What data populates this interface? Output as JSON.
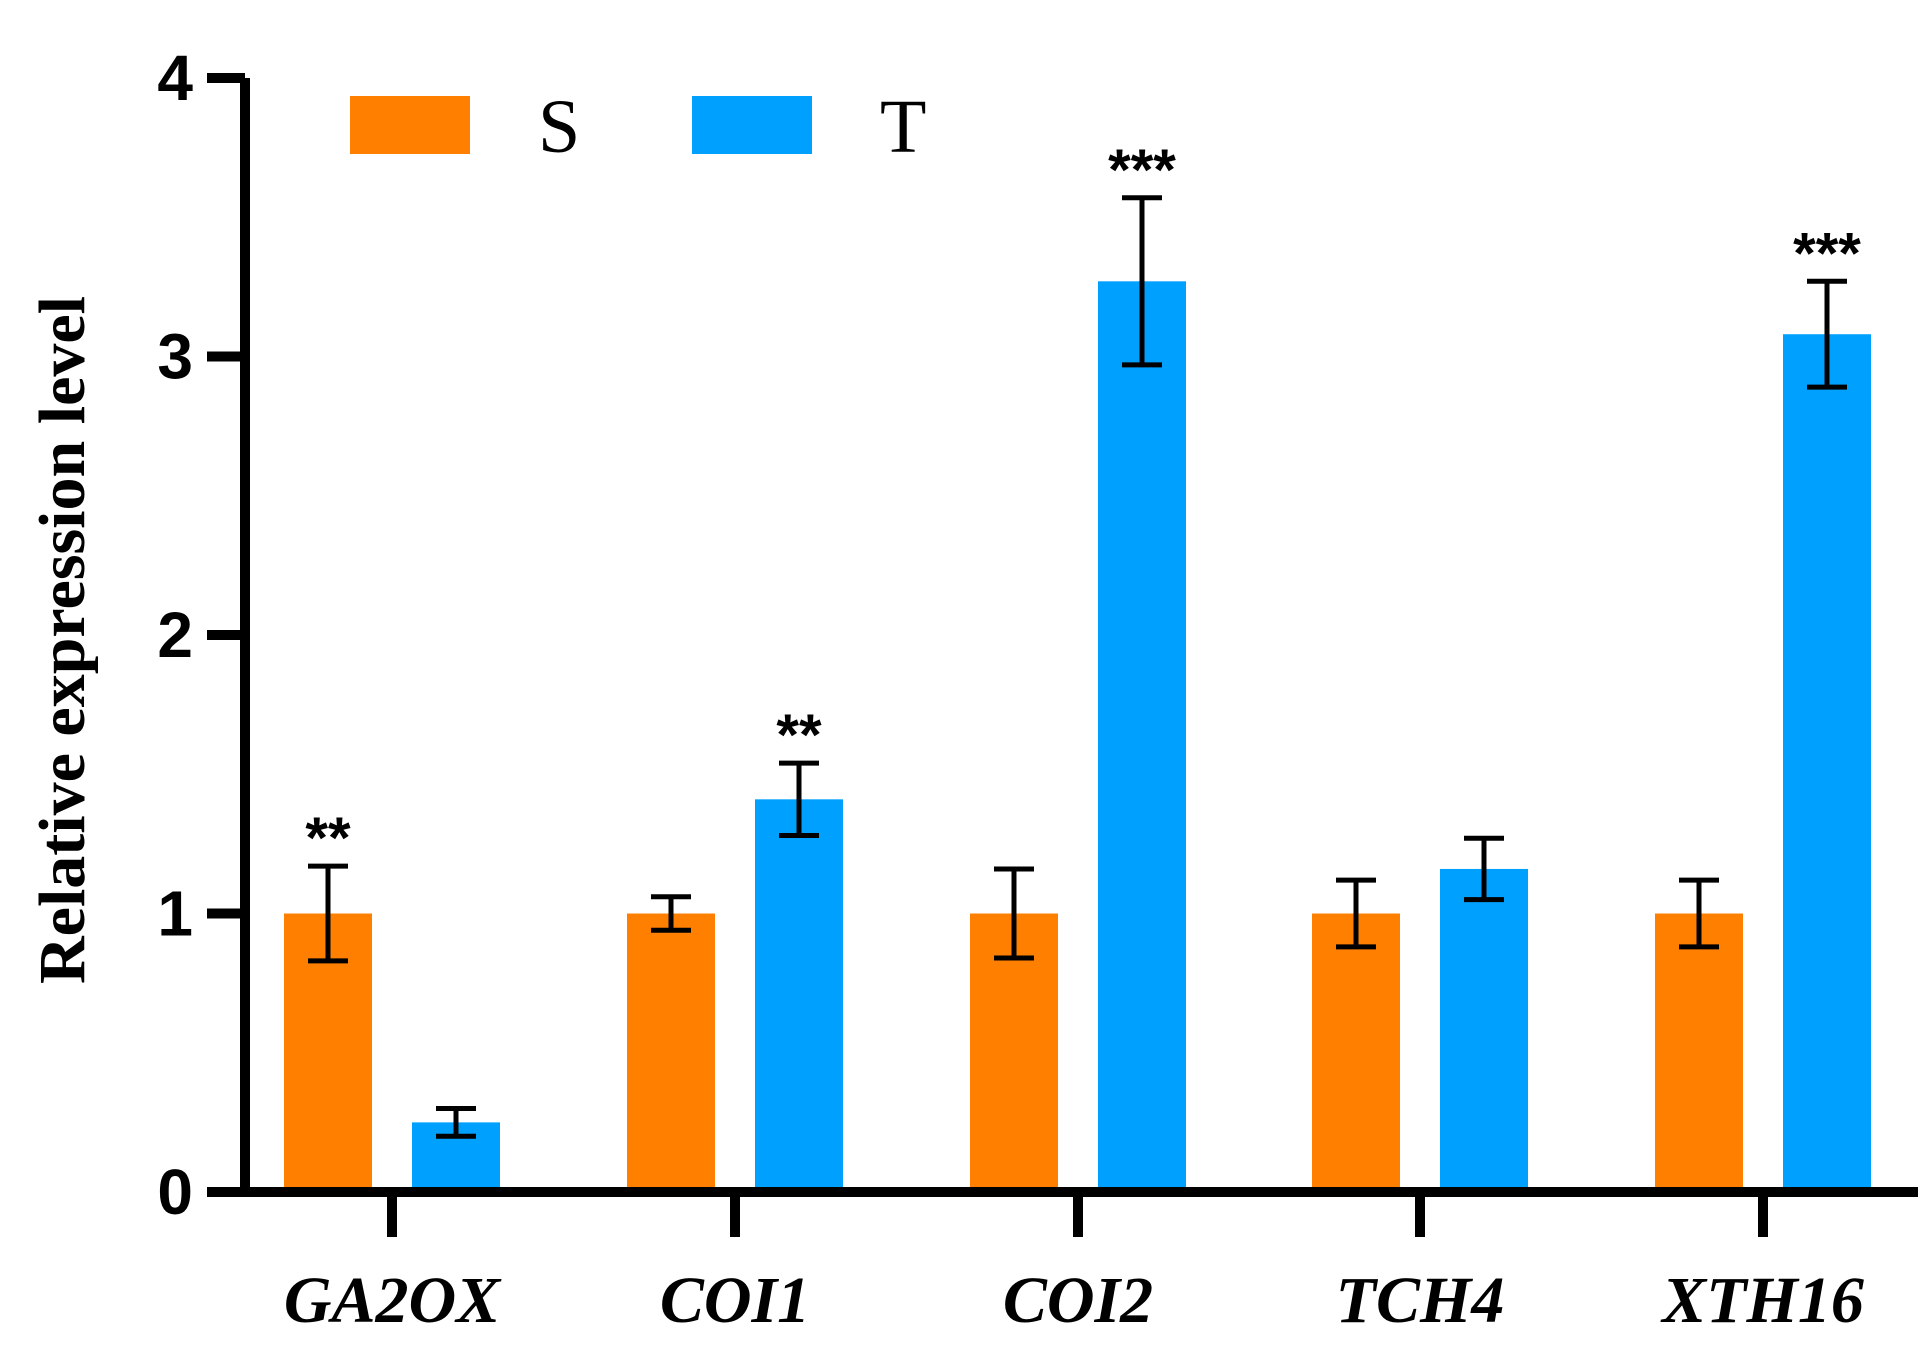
{
  "chart_data": {
    "type": "bar",
    "title": "",
    "xlabel": "",
    "ylabel": "Relative expression level",
    "ylim": [
      0,
      4
    ],
    "yticks": [
      "0",
      "1",
      "2",
      "3",
      "4"
    ],
    "categories": [
      "GA2OX",
      "COI1",
      "COI2",
      "TCH4",
      "XTH16"
    ],
    "legend_position": "top-left",
    "series": [
      {
        "name": "S",
        "color": "#FF7F00",
        "values": [
          1.0,
          1.0,
          1.0,
          1.0,
          1.0
        ],
        "errors": [
          0.17,
          0.06,
          0.16,
          0.12,
          0.12
        ]
      },
      {
        "name": "T",
        "color": "#00A0FF",
        "values": [
          0.25,
          1.41,
          3.27,
          1.16,
          3.08
        ],
        "errors": [
          0.05,
          0.13,
          0.3,
          0.11,
          0.19
        ]
      }
    ],
    "annotations": [
      {
        "category": "GA2OX",
        "series": "S",
        "text": "**"
      },
      {
        "category": "COI1",
        "series": "T",
        "text": "**"
      },
      {
        "category": "COI2",
        "series": "T",
        "text": "***"
      },
      {
        "category": "XTH16",
        "series": "T",
        "text": "***"
      }
    ]
  }
}
